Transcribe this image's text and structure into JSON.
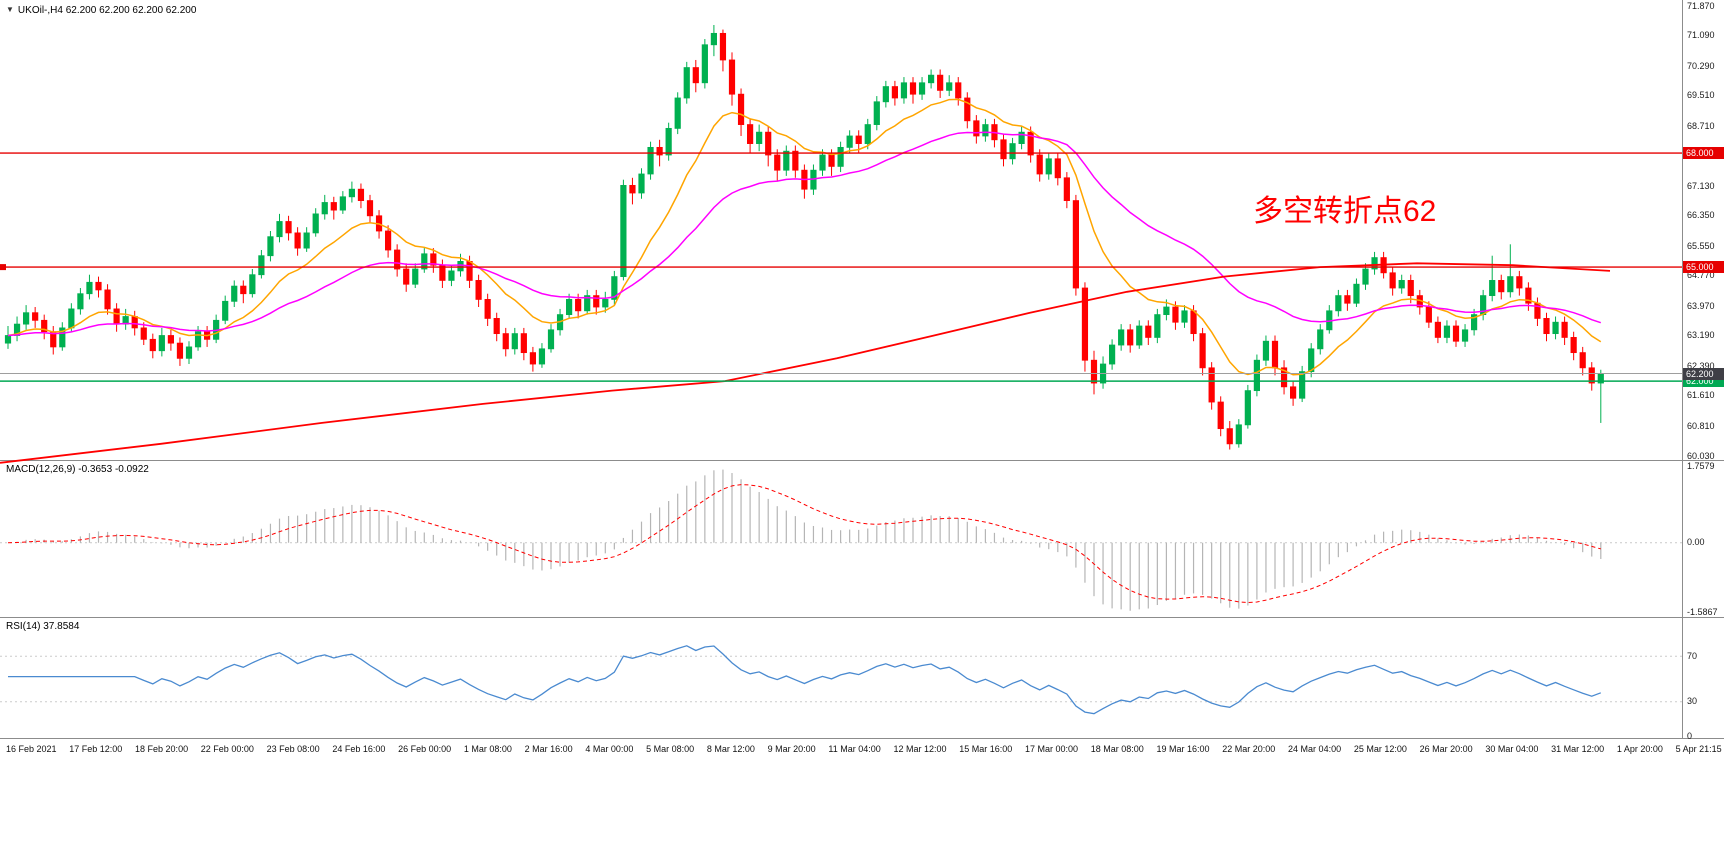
{
  "icons": {
    "dropdown": "▼"
  },
  "chart_data": [
    {
      "type": "candlestick",
      "title": "UKOil-,H4",
      "legend": "UKOil-,H4  62.200 62.200 62.200 62.200",
      "ohlc_last": {
        "open": "62.200",
        "high": "62.200",
        "low": "62.200",
        "close": "62.200"
      },
      "ylim": [
        60.03,
        71.87
      ],
      "y_ticks": [
        "71.870",
        "71.090",
        "70.290",
        "69.510",
        "68.710",
        "67.910",
        "67.130",
        "66.350",
        "65.550",
        "64.770",
        "63.970",
        "63.190",
        "62.390",
        "61.610",
        "60.810",
        "60.030"
      ],
      "x_labels": [
        "16 Feb 2021",
        "17 Feb 12:00",
        "18 Feb 20:00",
        "22 Feb 00:00",
        "23 Feb 08:00",
        "24 Feb 16:00",
        "26 Feb 00:00",
        "1 Mar 08:00",
        "2 Mar 16:00",
        "4 Mar 00:00",
        "5 Mar 08:00",
        "8 Mar 12:00",
        "9 Mar 20:00",
        "11 Mar 04:00",
        "12 Mar 12:00",
        "15 Mar 16:00",
        "17 Mar 00:00",
        "18 Mar 08:00",
        "19 Mar 16:00",
        "22 Mar 20:00",
        "24 Mar 04:00",
        "25 Mar 12:00",
        "26 Mar 20:00",
        "30 Mar 04:00",
        "31 Mar 12:00",
        "1 Apr 20:00",
        "5 Apr 21:15"
      ],
      "bull_color": "#00B050",
      "bear_color": "#FF0000",
      "candles": [
        [
          63.0,
          63.45,
          62.85,
          63.2
        ],
        [
          63.2,
          63.7,
          63.05,
          63.5
        ],
        [
          63.5,
          64.0,
          63.35,
          63.8
        ],
        [
          63.8,
          63.95,
          63.4,
          63.6
        ],
        [
          63.6,
          63.75,
          63.1,
          63.3
        ],
        [
          63.3,
          63.45,
          62.7,
          62.9
        ],
        [
          62.9,
          63.55,
          62.8,
          63.4
        ],
        [
          63.4,
          64.05,
          63.3,
          63.9
        ],
        [
          63.9,
          64.45,
          63.75,
          64.3
        ],
        [
          64.3,
          64.8,
          64.15,
          64.6
        ],
        [
          64.6,
          64.75,
          64.2,
          64.4
        ],
        [
          64.4,
          64.55,
          63.75,
          63.9
        ],
        [
          63.9,
          64.05,
          63.3,
          63.5
        ],
        [
          63.5,
          63.9,
          63.35,
          63.7
        ],
        [
          63.7,
          63.85,
          63.2,
          63.4
        ],
        [
          63.4,
          63.55,
          62.95,
          63.1
        ],
        [
          63.1,
          63.25,
          62.6,
          62.8
        ],
        [
          62.8,
          63.4,
          62.65,
          63.2
        ],
        [
          63.2,
          63.35,
          62.8,
          63.0
        ],
        [
          63.0,
          63.15,
          62.4,
          62.6
        ],
        [
          62.6,
          63.05,
          62.45,
          62.9
        ],
        [
          62.9,
          63.45,
          62.8,
          63.3
        ],
        [
          63.3,
          63.45,
          62.9,
          63.1
        ],
        [
          63.1,
          63.75,
          63.0,
          63.6
        ],
        [
          63.6,
          64.25,
          63.5,
          64.1
        ],
        [
          64.1,
          64.65,
          63.95,
          64.5
        ],
        [
          64.5,
          64.65,
          64.05,
          64.3
        ],
        [
          64.3,
          64.95,
          64.2,
          64.8
        ],
        [
          64.8,
          65.45,
          64.7,
          65.3
        ],
        [
          65.3,
          65.95,
          65.15,
          65.8
        ],
        [
          65.8,
          66.4,
          65.65,
          66.2
        ],
        [
          66.2,
          66.35,
          65.7,
          65.9
        ],
        [
          65.9,
          66.05,
          65.3,
          65.5
        ],
        [
          65.5,
          66.05,
          65.4,
          65.9
        ],
        [
          65.9,
          66.55,
          65.8,
          66.4
        ],
        [
          66.4,
          66.9,
          66.25,
          66.7
        ],
        [
          66.7,
          66.85,
          66.25,
          66.5
        ],
        [
          66.5,
          67.0,
          66.4,
          66.85
        ],
        [
          66.85,
          67.25,
          66.7,
          67.05
        ],
        [
          67.05,
          67.2,
          66.55,
          66.75
        ],
        [
          66.75,
          66.9,
          66.15,
          66.35
        ],
        [
          66.35,
          66.5,
          65.75,
          65.95
        ],
        [
          65.95,
          66.1,
          65.25,
          65.45
        ],
        [
          65.45,
          65.6,
          64.75,
          64.95
        ],
        [
          64.95,
          65.1,
          64.35,
          64.55
        ],
        [
          64.55,
          65.1,
          64.45,
          64.95
        ],
        [
          64.95,
          65.5,
          64.85,
          65.35
        ],
        [
          65.35,
          65.5,
          64.85,
          65.05
        ],
        [
          65.05,
          65.2,
          64.45,
          64.65
        ],
        [
          64.65,
          65.05,
          64.5,
          64.9
        ],
        [
          64.9,
          65.35,
          64.75,
          65.15
        ],
        [
          65.15,
          65.3,
          64.45,
          64.65
        ],
        [
          64.65,
          64.8,
          63.95,
          64.15
        ],
        [
          64.15,
          64.3,
          63.45,
          63.65
        ],
        [
          63.65,
          63.8,
          63.05,
          63.25
        ],
        [
          63.25,
          63.4,
          62.65,
          62.85
        ],
        [
          62.85,
          63.4,
          62.7,
          63.25
        ],
        [
          63.25,
          63.4,
          62.55,
          62.75
        ],
        [
          62.75,
          62.9,
          62.25,
          62.45
        ],
        [
          62.45,
          63.0,
          62.35,
          62.85
        ],
        [
          62.85,
          63.5,
          62.75,
          63.35
        ],
        [
          63.35,
          63.9,
          63.2,
          63.75
        ],
        [
          63.75,
          64.3,
          63.65,
          64.15
        ],
        [
          64.15,
          64.3,
          63.65,
          63.85
        ],
        [
          63.85,
          64.4,
          63.75,
          64.25
        ],
        [
          64.25,
          64.4,
          63.75,
          63.95
        ],
        [
          63.95,
          64.35,
          63.8,
          64.15
        ],
        [
          64.15,
          64.9,
          64.0,
          64.75
        ],
        [
          64.75,
          67.3,
          64.65,
          67.15
        ],
        [
          67.15,
          67.35,
          66.65,
          66.95
        ],
        [
          66.95,
          67.6,
          66.8,
          67.45
        ],
        [
          67.45,
          68.3,
          67.3,
          68.15
        ],
        [
          68.15,
          68.35,
          67.65,
          67.95
        ],
        [
          67.95,
          68.8,
          67.8,
          68.65
        ],
        [
          68.65,
          69.6,
          68.5,
          69.45
        ],
        [
          69.45,
          70.4,
          69.3,
          70.25
        ],
        [
          70.25,
          70.45,
          69.6,
          69.85
        ],
        [
          69.85,
          71.0,
          69.7,
          70.85
        ],
        [
          70.85,
          71.37,
          70.55,
          71.15
        ],
        [
          71.15,
          71.25,
          70.15,
          70.45
        ],
        [
          70.45,
          70.65,
          69.25,
          69.55
        ],
        [
          69.55,
          69.7,
          68.45,
          68.75
        ],
        [
          68.75,
          68.9,
          68.0,
          68.25
        ],
        [
          68.25,
          68.75,
          68.05,
          68.55
        ],
        [
          68.55,
          68.7,
          67.65,
          67.95
        ],
        [
          67.95,
          68.1,
          67.25,
          67.55
        ],
        [
          67.55,
          68.2,
          67.4,
          68.05
        ],
        [
          68.05,
          68.2,
          67.35,
          67.55
        ],
        [
          67.55,
          67.7,
          66.8,
          67.05
        ],
        [
          67.05,
          67.7,
          66.9,
          67.55
        ],
        [
          67.55,
          68.1,
          67.4,
          67.95
        ],
        [
          67.95,
          68.1,
          67.4,
          67.65
        ],
        [
          67.65,
          68.3,
          67.5,
          68.15
        ],
        [
          68.15,
          68.6,
          68.0,
          68.45
        ],
        [
          68.45,
          68.6,
          68.0,
          68.25
        ],
        [
          68.25,
          68.9,
          68.1,
          68.75
        ],
        [
          68.75,
          69.5,
          68.6,
          69.35
        ],
        [
          69.35,
          69.9,
          69.2,
          69.75
        ],
        [
          69.75,
          69.9,
          69.25,
          69.45
        ],
        [
          69.45,
          70.0,
          69.3,
          69.85
        ],
        [
          69.85,
          70.0,
          69.3,
          69.55
        ],
        [
          69.55,
          70.0,
          69.4,
          69.85
        ],
        [
          69.85,
          70.2,
          69.7,
          70.05
        ],
        [
          70.05,
          70.2,
          69.45,
          69.65
        ],
        [
          69.65,
          70.05,
          69.5,
          69.85
        ],
        [
          69.85,
          70.0,
          69.25,
          69.45
        ],
        [
          69.45,
          69.6,
          68.65,
          68.85
        ],
        [
          68.85,
          69.0,
          68.25,
          68.45
        ],
        [
          68.45,
          68.9,
          68.3,
          68.75
        ],
        [
          68.75,
          68.9,
          68.15,
          68.35
        ],
        [
          68.35,
          68.5,
          67.65,
          67.85
        ],
        [
          67.85,
          68.4,
          67.7,
          68.25
        ],
        [
          68.25,
          68.7,
          68.1,
          68.55
        ],
        [
          68.55,
          68.7,
          67.75,
          67.95
        ],
        [
          67.95,
          68.1,
          67.25,
          67.45
        ],
        [
          67.45,
          68.0,
          67.3,
          67.85
        ],
        [
          67.85,
          68.0,
          67.15,
          67.35
        ],
        [
          67.35,
          67.5,
          66.55,
          66.75
        ],
        [
          66.75,
          66.9,
          64.25,
          64.45
        ],
        [
          64.45,
          64.6,
          62.25,
          62.55
        ],
        [
          62.55,
          62.8,
          61.65,
          61.95
        ],
        [
          61.95,
          62.65,
          61.8,
          62.45
        ],
        [
          62.45,
          63.1,
          62.3,
          62.95
        ],
        [
          62.95,
          63.5,
          62.8,
          63.35
        ],
        [
          63.35,
          63.5,
          62.75,
          62.95
        ],
        [
          62.95,
          63.6,
          62.85,
          63.45
        ],
        [
          63.45,
          63.6,
          62.95,
          63.15
        ],
        [
          63.15,
          63.9,
          63.0,
          63.75
        ],
        [
          63.75,
          64.15,
          63.6,
          63.95
        ],
        [
          63.95,
          64.1,
          63.35,
          63.55
        ],
        [
          63.55,
          64.0,
          63.4,
          63.85
        ],
        [
          63.85,
          64.0,
          63.05,
          63.25
        ],
        [
          63.25,
          63.4,
          62.15,
          62.35
        ],
        [
          62.35,
          62.5,
          61.25,
          61.45
        ],
        [
          61.45,
          61.6,
          60.55,
          60.75
        ],
        [
          60.75,
          60.95,
          60.2,
          60.35
        ],
        [
          60.35,
          61.0,
          60.25,
          60.85
        ],
        [
          60.85,
          61.9,
          60.75,
          61.75
        ],
        [
          61.75,
          62.7,
          61.6,
          62.55
        ],
        [
          62.55,
          63.2,
          62.4,
          63.05
        ],
        [
          63.05,
          63.2,
          62.15,
          62.35
        ],
        [
          62.35,
          62.55,
          61.65,
          61.85
        ],
        [
          61.85,
          62.0,
          61.35,
          61.55
        ],
        [
          61.55,
          62.4,
          61.45,
          62.25
        ],
        [
          62.25,
          63.0,
          62.1,
          62.85
        ],
        [
          62.85,
          63.5,
          62.7,
          63.35
        ],
        [
          63.35,
          64.0,
          63.25,
          63.85
        ],
        [
          63.85,
          64.4,
          63.7,
          64.25
        ],
        [
          64.25,
          64.4,
          63.85,
          64.05
        ],
        [
          64.05,
          64.7,
          63.95,
          64.55
        ],
        [
          64.55,
          65.1,
          64.4,
          64.95
        ],
        [
          64.95,
          65.4,
          64.8,
          65.25
        ],
        [
          65.25,
          65.4,
          64.7,
          64.85
        ],
        [
          64.85,
          65.0,
          64.25,
          64.45
        ],
        [
          64.45,
          64.8,
          64.3,
          64.65
        ],
        [
          64.65,
          64.8,
          64.05,
          64.25
        ],
        [
          64.25,
          64.4,
          63.75,
          63.95
        ],
        [
          63.95,
          64.1,
          63.4,
          63.55
        ],
        [
          63.55,
          63.7,
          63.0,
          63.15
        ],
        [
          63.15,
          63.6,
          63.0,
          63.45
        ],
        [
          63.45,
          63.6,
          62.9,
          63.05
        ],
        [
          63.05,
          63.5,
          62.9,
          63.35
        ],
        [
          63.35,
          63.9,
          63.2,
          63.75
        ],
        [
          63.75,
          64.4,
          63.6,
          64.25
        ],
        [
          64.25,
          65.3,
          64.1,
          64.65
        ],
        [
          64.65,
          64.8,
          64.15,
          64.35
        ],
        [
          64.35,
          65.6,
          64.2,
          64.75
        ],
        [
          64.75,
          64.9,
          64.25,
          64.45
        ],
        [
          64.45,
          64.6,
          63.85,
          64.05
        ],
        [
          64.05,
          64.2,
          63.45,
          63.65
        ],
        [
          63.65,
          63.8,
          63.05,
          63.25
        ],
        [
          63.25,
          63.7,
          63.1,
          63.55
        ],
        [
          63.55,
          63.7,
          62.95,
          63.15
        ],
        [
          63.15,
          63.3,
          62.55,
          62.75
        ],
        [
          62.75,
          62.9,
          62.15,
          62.35
        ],
        [
          62.35,
          62.5,
          61.75,
          61.95
        ],
        [
          61.95,
          62.3,
          60.9,
          62.2
        ]
      ],
      "emas": [
        {
          "name": "fast-ma",
          "period": 12,
          "color": "#FFA500"
        },
        {
          "name": "medium-ma",
          "period": 34,
          "color": "#FF00FF"
        }
      ],
      "long_ma": {
        "name": "slow-ma",
        "color": "#FF0000",
        "points": [
          [
            0,
            59.85
          ],
          [
            0.1,
            60.35
          ],
          [
            0.2,
            60.9
          ],
          [
            0.3,
            61.4
          ],
          [
            0.38,
            61.75
          ],
          [
            0.45,
            62.0
          ],
          [
            0.52,
            62.6
          ],
          [
            0.58,
            63.2
          ],
          [
            0.64,
            63.8
          ],
          [
            0.7,
            64.35
          ],
          [
            0.76,
            64.75
          ],
          [
            0.82,
            65.0
          ],
          [
            0.88,
            65.1
          ],
          [
            0.94,
            65.05
          ],
          [
            1,
            64.9
          ]
        ]
      },
      "hlines": [
        {
          "price": 68.0,
          "label": "68.000",
          "color": "#E60000",
          "text_color": "#FFFFFF",
          "left_tag": false
        },
        {
          "price": 65.0,
          "label": "65.000",
          "color": "#E60000",
          "text_color": "#FFFFFF",
          "left_tag": true
        },
        {
          "price": 62.0,
          "label": "62.000",
          "color": "#00A853",
          "text_color": "#FFFFFF",
          "left_tag": false
        }
      ],
      "price_marker": {
        "price": 62.2,
        "label": "62.200",
        "line_color": "#9E9E9E",
        "bg": "#3F3F46",
        "text_color": "#FFFFFF"
      },
      "annotation": {
        "text": "多空转折点62",
        "color": "#FF0000"
      }
    },
    {
      "type": "macd-histogram",
      "legend": "MACD(12,26,9) -0.3653 -0.0922",
      "params": [
        12,
        26,
        9
      ],
      "values": {
        "macd": -0.3653,
        "signal": -0.0922
      },
      "ylim": [
        -1.5867,
        1.7579
      ],
      "y_ticks": [
        "1.7579",
        "0.00",
        "-1.5867"
      ],
      "hist_color": "#B5B5B5",
      "signal_color": "#FF0000"
    },
    {
      "type": "rsi-line",
      "legend": "RSI(14) 37.8584",
      "period": 14,
      "value": 37.8584,
      "levels": [
        70,
        30
      ],
      "ylim": [
        0,
        100
      ],
      "y_ticks": [
        "70",
        "30",
        "0"
      ],
      "color": "#4A8AD0"
    }
  ]
}
